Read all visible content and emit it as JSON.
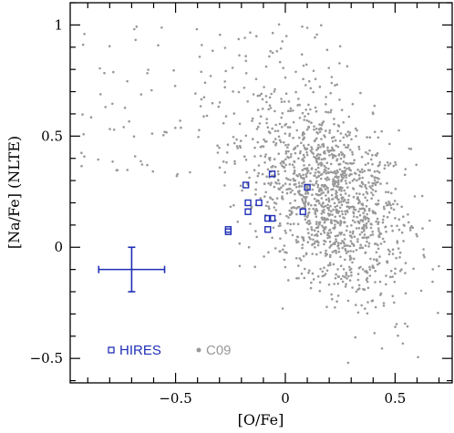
{
  "chart_data": {
    "type": "scatter",
    "xlabel": "[O/Fe]",
    "ylabel": "[Na/Fe] (NLTE)",
    "xlim": [
      -0.98,
      0.76
    ],
    "ylim": [
      -0.61,
      1.1
    ],
    "x_ticks": [
      {
        "value": -0.5,
        "label": "−0.5"
      },
      {
        "value": 0,
        "label": "0"
      },
      {
        "value": 0.5,
        "label": "0.5"
      }
    ],
    "y_ticks": [
      {
        "value": -0.5,
        "label": "−0.5"
      },
      {
        "value": 0,
        "label": "0"
      },
      {
        "value": 0.5,
        "label": "0.5"
      },
      {
        "value": 1,
        "label": "1"
      }
    ],
    "legend": {
      "placement": "bottom-left"
    },
    "colors": {
      "hires": "#1f2fb5",
      "c09": "#999999"
    },
    "series": [
      {
        "name": "HIRES",
        "marker": "open-square",
        "x": [
          -0.26,
          -0.26,
          -0.18,
          -0.17,
          -0.17,
          -0.12,
          -0.08,
          -0.08,
          -0.06,
          -0.06,
          0.08,
          0.1
        ],
        "y": [
          0.07,
          0.08,
          0.28,
          0.2,
          0.16,
          0.2,
          0.13,
          0.08,
          0.33,
          0.13,
          0.16,
          0.27
        ]
      },
      {
        "name": "C09",
        "marker": "dot",
        "cloud": {
          "count": 1500,
          "core": {
            "x_mean": 0.2,
            "x_sd": 0.18,
            "y_mean": 0.22,
            "y_sd": 0.2,
            "slope": -0.5
          },
          "halo": {
            "x_range": [
              -0.95,
              0.3
            ],
            "y_range": [
              0.3,
              1.0
            ]
          }
        }
      }
    ],
    "error_bar": {
      "x": -0.7,
      "y": -0.1,
      "x_err": 0.15,
      "y_err": 0.1,
      "color": "#1f2fb5"
    }
  }
}
